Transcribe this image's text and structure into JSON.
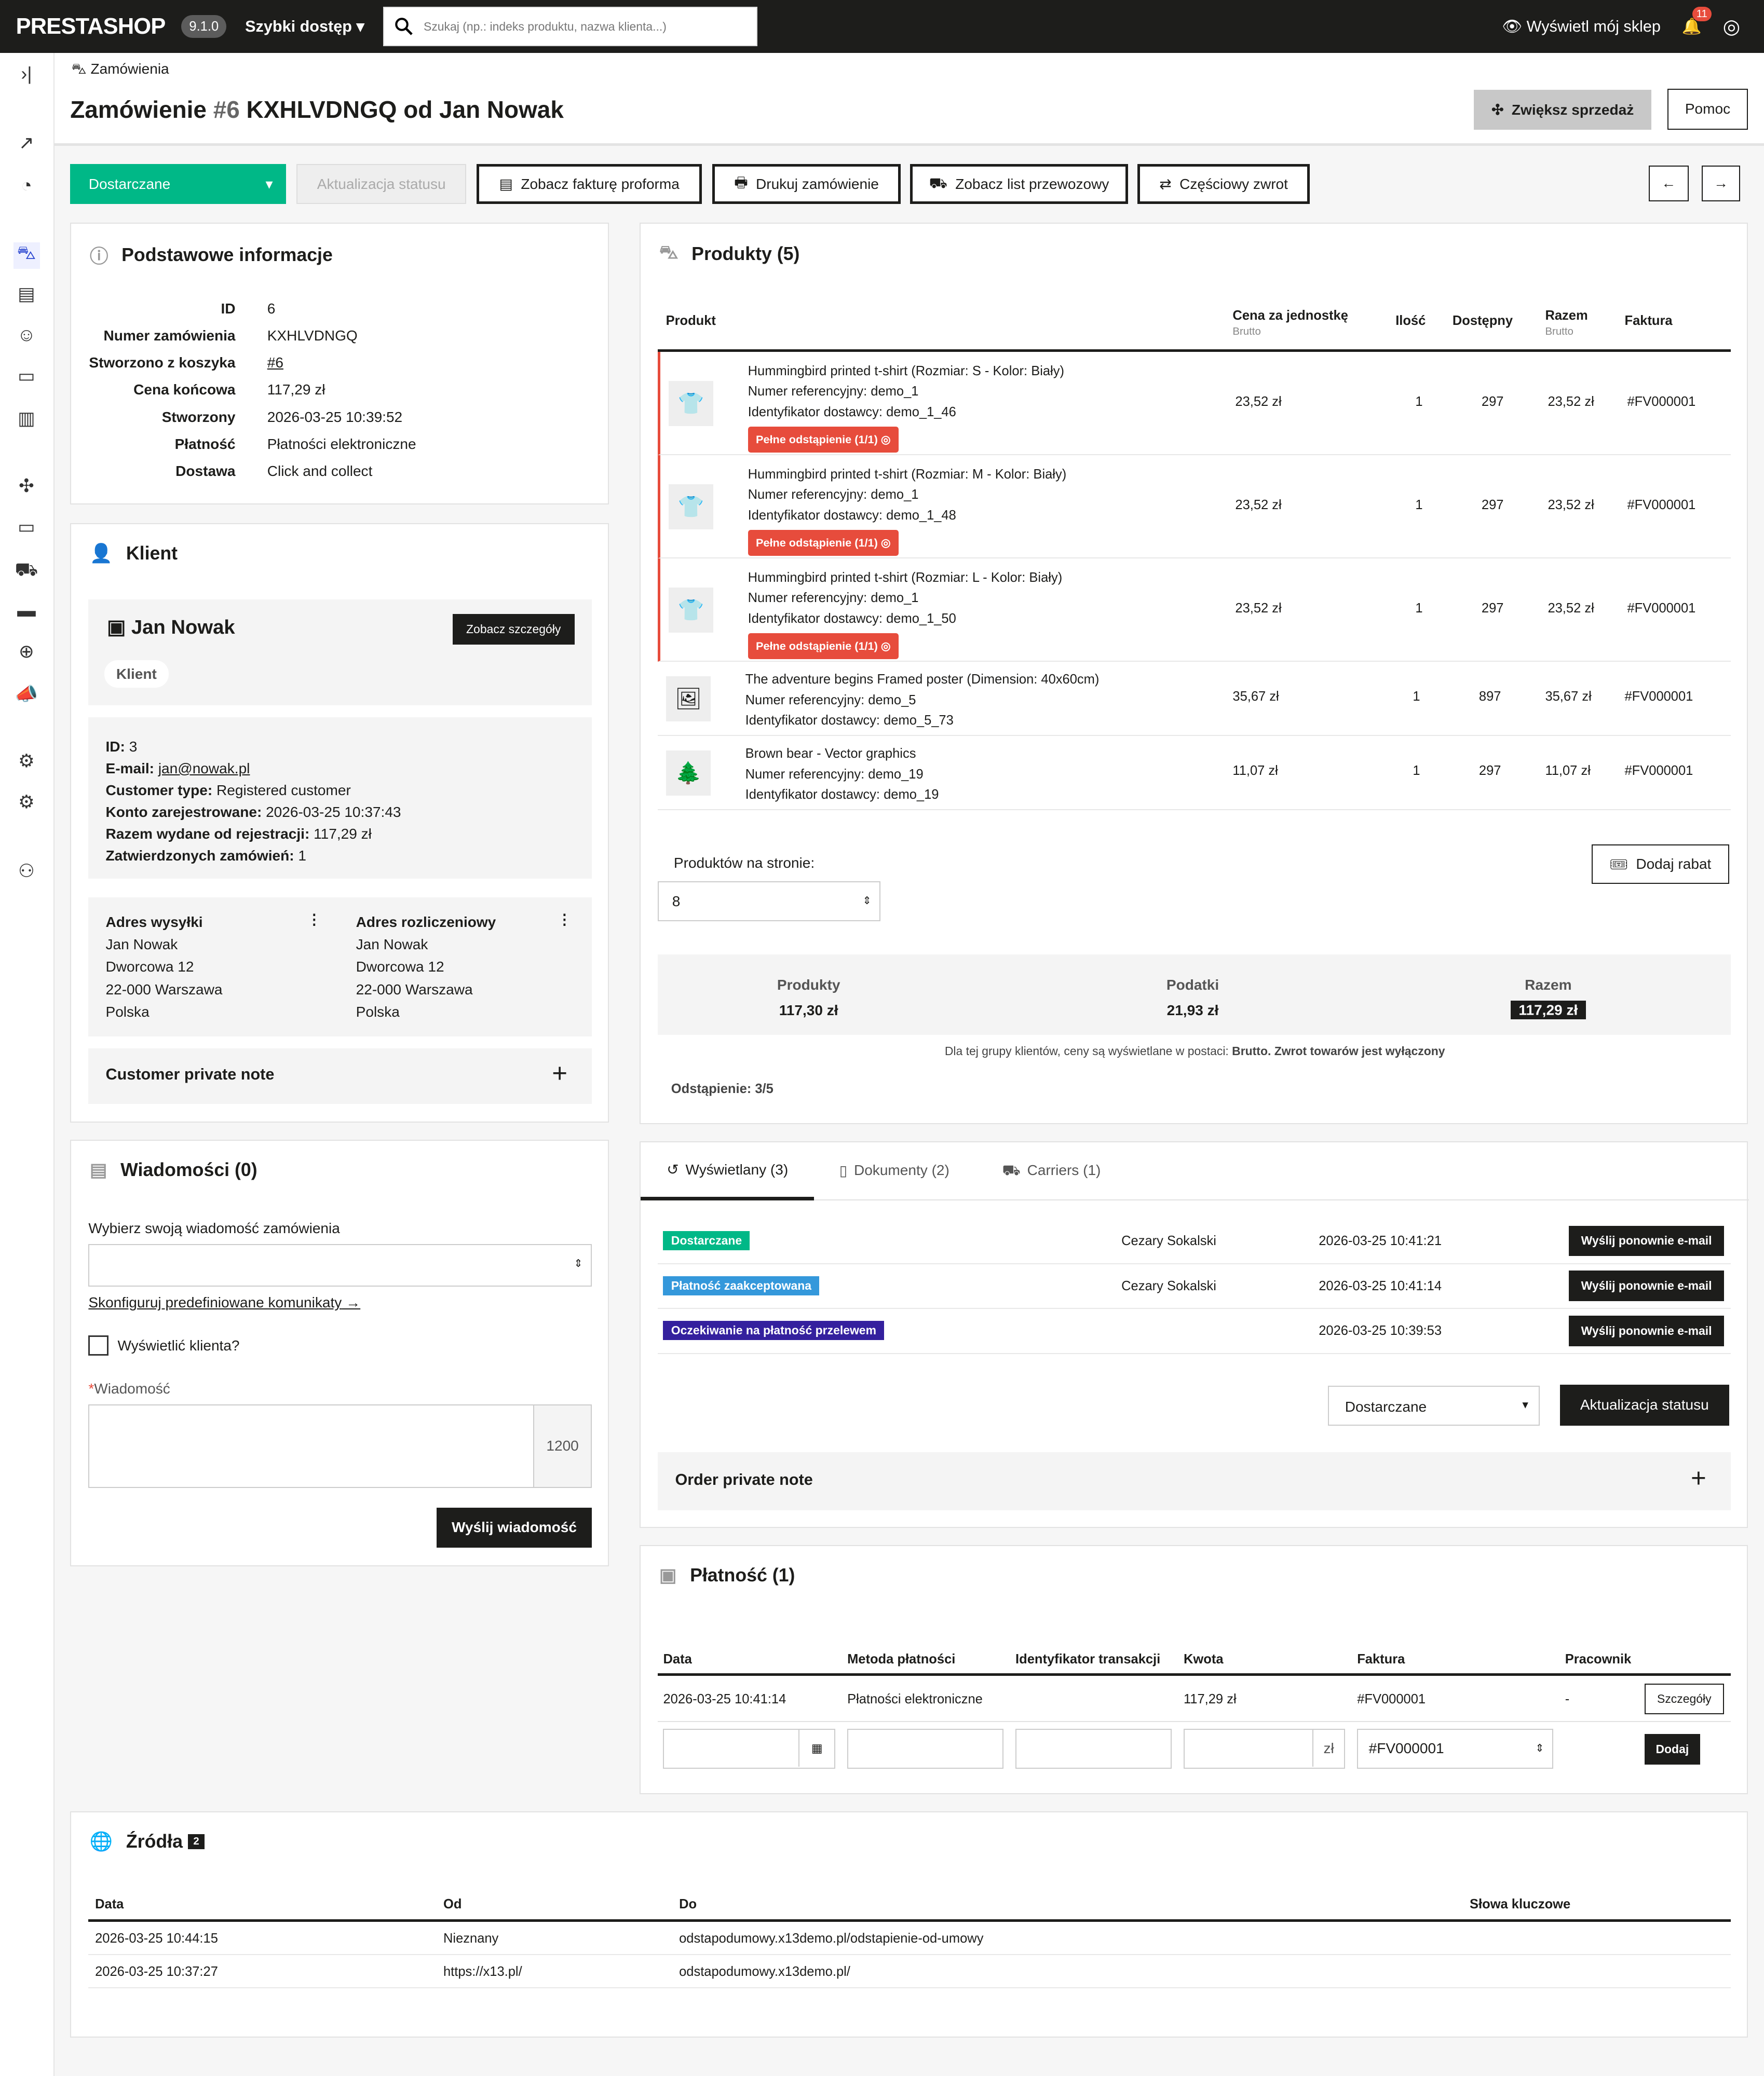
{
  "topbar": {
    "logo": "PRESTASHOP",
    "version": "9.1.0",
    "quick_access": "Szybki dostęp",
    "search_placeholder": "Szukaj (np.: indeks produktu, nazwa klienta...)",
    "view_shop": "Wyświetl mój sklep",
    "notifications": "11"
  },
  "header": {
    "breadcrumb": "Zamówienia",
    "title_prefix": "Zamówienie",
    "order_id": "#6",
    "title_rest": "KXHLVDNGQ od Jan Nowak",
    "increase_sales": "Zwiększ sprzedaż",
    "help": "Pomoc"
  },
  "toolbar": {
    "status": "Dostarczane",
    "update_status": "Aktualizacja statusu",
    "proforma": "Zobacz fakturę proforma",
    "print": "Drukuj zamówienie",
    "delivery_slip": "Zobacz list przewozowy",
    "partial_refund": "Częściowy zwrot"
  },
  "basic": {
    "title": "Podstawowe informacje",
    "rows": [
      {
        "k": "ID",
        "v": "6"
      },
      {
        "k": "Numer zamówienia",
        "v": "KXHLVDNGQ"
      },
      {
        "k": "Stworzono z koszyka",
        "v": "#6"
      },
      {
        "k": "Cena końcowa",
        "v": "117,29 zł"
      },
      {
        "k": "Stworzony",
        "v": "2026-03-25 10:39:52"
      },
      {
        "k": "Płatność",
        "v": "Płatności elektroniczne"
      },
      {
        "k": "Dostawa",
        "v": "Click and collect"
      }
    ]
  },
  "customer": {
    "title": "Klient",
    "name": "Jan Nowak",
    "details_btn": "Zobacz szczegóły",
    "tag": "Klient",
    "info": [
      {
        "k": "ID:",
        "v": "3"
      },
      {
        "k": "E-mail:",
        "v": "jan@nowak.pl"
      },
      {
        "k": "Customer type:",
        "v": "Registered customer"
      },
      {
        "k": "Konto zarejestrowane:",
        "v": "2026-03-25 10:37:43"
      },
      {
        "k": "Razem wydane od rejestracji:",
        "v": "117,29 zł"
      },
      {
        "k": "Zatwierdzonych zamówień:",
        "v": "1"
      }
    ],
    "shipping": {
      "title": "Adres wysyłki",
      "lines": [
        "Jan Nowak",
        "Dworcowa 12",
        "22-000 Warszawa",
        "Polska"
      ]
    },
    "billing": {
      "title": "Adres rozliczeniowy",
      "lines": [
        "Jan Nowak",
        "Dworcowa 12",
        "22-000 Warszawa",
        "Polska"
      ]
    },
    "private_note": "Customer private note"
  },
  "messages": {
    "title": "Wiadomości (0)",
    "choose": "Wybierz swoją wiadomość zamówienia",
    "configure": "Skonfiguruj predefiniowane komunikaty",
    "show_customer": "Wyświetlić klienta?",
    "message_label": "Wiadomość",
    "counter": "1200",
    "send": "Wyślij wiadomość"
  },
  "products": {
    "title": "Produkty (5)",
    "headers": {
      "product": "Produkt",
      "unit_price": "Cena za jednostkę",
      "brutto": "Brutto",
      "qty": "Ilość",
      "available": "Dostępny",
      "total": "Razem",
      "invoice": "Faktura"
    },
    "items": [
      {
        "name": "Hummingbird printed t-shirt (Rozmiar: S - Kolor: Biały)",
        "ref": "Numer referencyjny: demo_1",
        "supplier": "Identyfikator dostawcy: demo_1_46",
        "badge": "Pełne odstąpienie (1/1)",
        "price": "23,52 zł",
        "qty": "1",
        "avail": "297",
        "total": "23,52 zł",
        "invoice": "#FV000001",
        "icon": "👕"
      },
      {
        "name": "Hummingbird printed t-shirt (Rozmiar: M - Kolor: Biały)",
        "ref": "Numer referencyjny: demo_1",
        "supplier": "Identyfikator dostawcy: demo_1_48",
        "badge": "Pełne odstąpienie (1/1)",
        "price": "23,52 zł",
        "qty": "1",
        "avail": "297",
        "total": "23,52 zł",
        "invoice": "#FV000001",
        "icon": "👕"
      },
      {
        "name": "Hummingbird printed t-shirt (Rozmiar: L - Kolor: Biały)",
        "ref": "Numer referencyjny: demo_1",
        "supplier": "Identyfikator dostawcy: demo_1_50",
        "badge": "Pełne odstąpienie (1/1)",
        "price": "23,52 zł",
        "qty": "1",
        "avail": "297",
        "total": "23,52 zł",
        "invoice": "#FV000001",
        "icon": "👕"
      },
      {
        "name": "The adventure begins Framed poster (Dimension: 40x60cm)",
        "ref": "Numer referencyjny: demo_5",
        "supplier": "Identyfikator dostawcy: demo_5_73",
        "badge": "",
        "price": "35,67 zł",
        "qty": "1",
        "avail": "897",
        "total": "35,67 zł",
        "invoice": "#FV000001",
        "icon": "🖼"
      },
      {
        "name": "Brown bear - Vector graphics",
        "ref": "Numer referencyjny: demo_19",
        "supplier": "Identyfikator dostawcy: demo_19",
        "badge": "",
        "price": "11,07 zł",
        "qty": "1",
        "avail": "297",
        "total": "11,07 zł",
        "invoice": "#FV000001",
        "icon": "🌲"
      }
    ],
    "per_page_label": "Produktów na stronie:",
    "per_page": "8",
    "add_discount": "Dodaj rabat",
    "summary": {
      "products_label": "Produkty",
      "products": "117,30 zł",
      "taxes_label": "Podatki",
      "taxes": "21,93 zł",
      "total_label": "Razem",
      "total": "117,29 zł"
    },
    "note_pre": "Dla tej grupy klientów, ceny są wyświetlane w postaci: ",
    "note_bold": "Brutto. Zwrot towarów jest wyłączony",
    "withdrawal": "Odstąpienie: 3/5"
  },
  "history": {
    "tabs": [
      "Wyświetlany (3)",
      "Dokumenty (2)",
      "Carriers (1)"
    ],
    "rows": [
      {
        "status": "Dostarczane",
        "color": "#00b887",
        "employee": "Cezary Sokalski",
        "date": "2026-03-25 10:41:21",
        "resend": "Wyślij ponownie e-mail"
      },
      {
        "status": "Płatność zaakceptowana",
        "color": "#3498db",
        "employee": "Cezary Sokalski",
        "date": "2026-03-25 10:41:14",
        "resend": "Wyślij ponownie e-mail"
      },
      {
        "status": "Oczekiwanie na płatność przelewem",
        "color": "#34209e",
        "employee": "",
        "date": "2026-03-25 10:39:53",
        "resend": "Wyślij ponownie e-mail"
      }
    ],
    "select": "Dostarczane",
    "update": "Aktualizacja statusu",
    "private_note": "Order private note"
  },
  "payment": {
    "title": "Płatność (1)",
    "headers": [
      "Data",
      "Metoda płatności",
      "Identyfikator transakcji",
      "Kwota",
      "Faktura",
      "Pracownik"
    ],
    "row": [
      "2026-03-25 10:41:14",
      "Płatności elektroniczne",
      "",
      "117,29 zł",
      "#FV000001",
      "-"
    ],
    "details": "Szczegóły",
    "currency": "zł",
    "invoice_select": "#FV000001",
    "add": "Dodaj"
  },
  "sources": {
    "title": "Źródła",
    "count": "2",
    "headers": [
      "Data",
      "Od",
      "Do",
      "Słowa kluczowe"
    ],
    "rows": [
      [
        "2026-03-25 10:44:15",
        "Nieznany",
        "odstapodumowy.x13demo.pl/odstapienie-od-umowy",
        ""
      ],
      [
        "2026-03-25 10:37:27",
        "https://x13.pl/",
        "odstapodumowy.x13demo.pl/",
        ""
      ]
    ]
  },
  "colors": {
    "accent": "#00b887",
    "danger": "#e74c3c",
    "dark": "#1d1d1b"
  }
}
